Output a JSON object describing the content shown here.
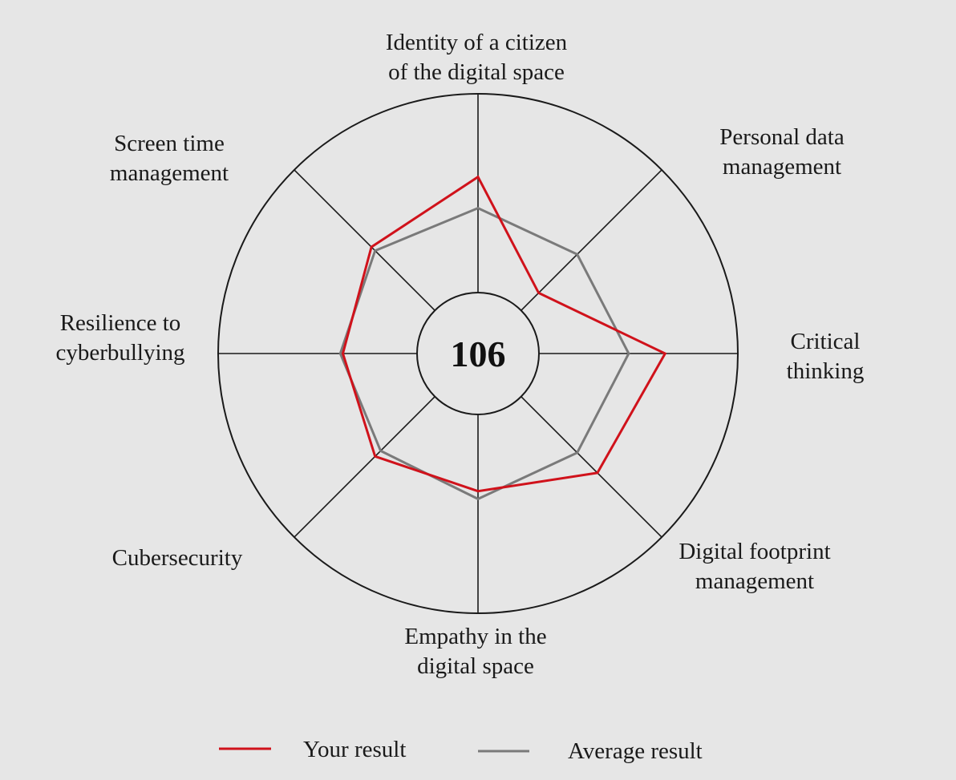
{
  "chart_data": {
    "type": "radar",
    "center_value": "106",
    "scale_max": 1,
    "axes": [
      {
        "lines": [
          "Identity of a citizen",
          "of the digital space"
        ]
      },
      {
        "lines": [
          "Personal data",
          "management"
        ]
      },
      {
        "lines": [
          "Critical",
          "thinking"
        ]
      },
      {
        "lines": [
          "Digital footprint",
          "management"
        ]
      },
      {
        "lines": [
          "Empathy in the",
          "digital space"
        ]
      },
      {
        "lines": [
          "Cubersecurity"
        ]
      },
      {
        "lines": [
          "Resilience to",
          "cyberbullying"
        ]
      },
      {
        "lines": [
          "Screen time",
          "management"
        ]
      }
    ],
    "series": [
      {
        "name": "Your result",
        "color": "#d0121b",
        "values": [
          0.68,
          0.33,
          0.72,
          0.65,
          0.53,
          0.56,
          0.52,
          0.58
        ]
      },
      {
        "name": "Average result",
        "color": "#7a7a7a",
        "values": [
          0.56,
          0.54,
          0.58,
          0.54,
          0.56,
          0.53,
          0.53,
          0.56
        ]
      }
    ],
    "grid_color": "#1a1a1a"
  }
}
